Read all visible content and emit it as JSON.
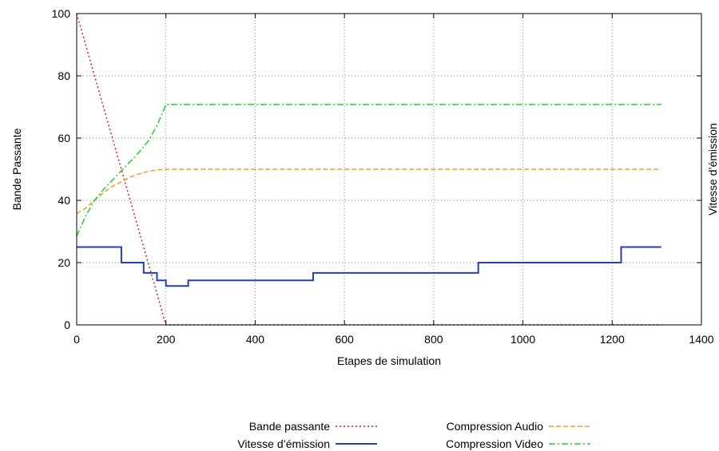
{
  "chart_data": {
    "type": "line",
    "title": "",
    "xlabel": "Etapes de simulation",
    "ylabel": "Bande Passante",
    "y2label": "Vitesse d’émission",
    "xlim": [
      0,
      1400
    ],
    "ylim": [
      0,
      100
    ],
    "grid": true,
    "legend_position": "bottom",
    "xticks": [
      "0",
      "200",
      "400",
      "600",
      "800",
      "1000",
      "1200",
      "1400"
    ],
    "yticks": [
      "0",
      "20",
      "40",
      "60",
      "80",
      "100"
    ],
    "series": [
      {
        "name": "Bande passante",
        "color": "#e41a1c",
        "style": "dotted",
        "points": [
          [
            0,
            100
          ],
          [
            200,
            0
          ],
          [
            1310,
            0
          ]
        ]
      },
      {
        "name": "Vitesse d’émission",
        "color": "#1f3fbf",
        "style": "solid",
        "points": [
          [
            0,
            25
          ],
          [
            100,
            25
          ],
          [
            100,
            20
          ],
          [
            150,
            20
          ],
          [
            150,
            16.7
          ],
          [
            180,
            16.7
          ],
          [
            180,
            14.3
          ],
          [
            200,
            14.3
          ],
          [
            200,
            12.5
          ],
          [
            250,
            12.5
          ],
          [
            250,
            14.3
          ],
          [
            530,
            14.3
          ],
          [
            530,
            16.7
          ],
          [
            900,
            16.7
          ],
          [
            900,
            20
          ],
          [
            1220,
            20
          ],
          [
            1220,
            25
          ],
          [
            1310,
            25
          ]
        ]
      },
      {
        "name": "Compression Audio",
        "color": "#f0a020",
        "style": "dashed",
        "points": [
          [
            0,
            35.8
          ],
          [
            20,
            37.5
          ],
          [
            40,
            40
          ],
          [
            60,
            42.5
          ],
          [
            80,
            44.5
          ],
          [
            100,
            46
          ],
          [
            120,
            47.5
          ],
          [
            140,
            48.5
          ],
          [
            160,
            49.3
          ],
          [
            180,
            49.8
          ],
          [
            200,
            50
          ],
          [
            1310,
            50
          ]
        ]
      },
      {
        "name": "Compression Video",
        "color": "#2ecc2e",
        "style": "dashdot",
        "points": [
          [
            0,
            28.5
          ],
          [
            20,
            35
          ],
          [
            40,
            40
          ],
          [
            60,
            43.5
          ],
          [
            80,
            46.5
          ],
          [
            100,
            49.5
          ],
          [
            120,
            52.5
          ],
          [
            140,
            55.5
          ],
          [
            160,
            59
          ],
          [
            180,
            64
          ],
          [
            200,
            70.8
          ],
          [
            1310,
            70.8
          ]
        ]
      }
    ]
  }
}
